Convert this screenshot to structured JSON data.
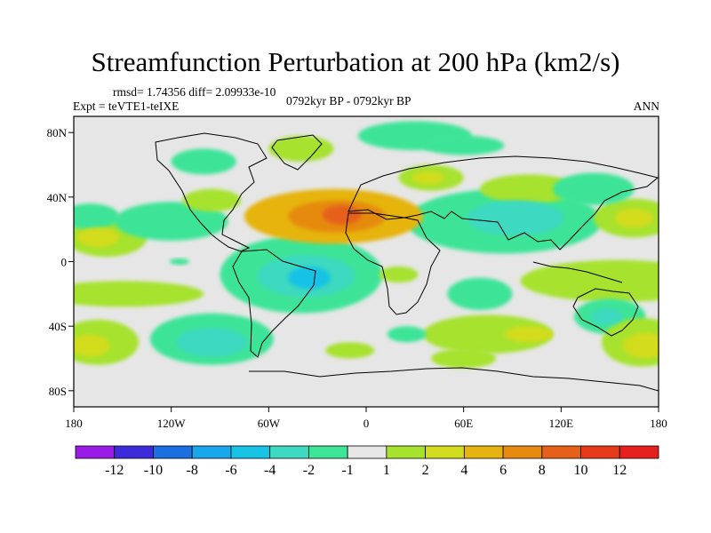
{
  "chart_data": {
    "type": "heatmap",
    "title": "Streamfunction Perturbation at 200 hPa (km2/s)",
    "stats_label": "rmsd= 1.74356 diff= 2.09933e-10",
    "experiment_label": "Expt = teVTE1-teIXE",
    "period_label": "0792kyr BP - 0792kyr BP",
    "season_label": "ANN",
    "xlim": [
      -180,
      180
    ],
    "ylim": [
      -90,
      90
    ],
    "x_ticks": [
      {
        "value": -180,
        "label": "180"
      },
      {
        "value": -120,
        "label": "120W"
      },
      {
        "value": -60,
        "label": "60W"
      },
      {
        "value": 0,
        "label": "0"
      },
      {
        "value": 60,
        "label": "60E"
      },
      {
        "value": 120,
        "label": "120E"
      },
      {
        "value": 180,
        "label": "180"
      }
    ],
    "y_ticks": [
      {
        "value": 80,
        "label": "80N"
      },
      {
        "value": 40,
        "label": "40N"
      },
      {
        "value": 0,
        "label": "0"
      },
      {
        "value": -40,
        "label": "40S"
      },
      {
        "value": -80,
        "label": "80S"
      }
    ],
    "colorbar": {
      "labels": [
        "-12",
        "-10",
        "-8",
        "-6",
        "-4",
        "-2",
        "-1",
        "1",
        "2",
        "4",
        "6",
        "8",
        "10",
        "12"
      ],
      "colors": [
        "#9a1be6",
        "#3c2bd8",
        "#1b6fe0",
        "#1aa6ea",
        "#19c3e6",
        "#3ed9c0",
        "#3ee497",
        "#e6e6e6",
        "#a6e22e",
        "#d2dc1f",
        "#e6b410",
        "#e68a10",
        "#e6601a",
        "#e63a1a",
        "#e61f1f"
      ]
    },
    "blobs": [
      {
        "lon": -20,
        "lat": 28,
        "rx": 55,
        "ry": 17,
        "level": 3
      },
      {
        "lon": -18,
        "lat": 28,
        "rx": 30,
        "ry": 10,
        "level": 4
      },
      {
        "lon": -15,
        "lat": 29,
        "rx": 12,
        "ry": 6,
        "level": 5
      },
      {
        "lon": 40,
        "lat": 52,
        "rx": 20,
        "ry": 8,
        "level": 1
      },
      {
        "lon": 38,
        "lat": 52,
        "rx": 10,
        "ry": 4,
        "level": 2
      },
      {
        "lon": -40,
        "lat": -8,
        "rx": 50,
        "ry": 24,
        "level": -1
      },
      {
        "lon": -37,
        "lat": -9,
        "rx": 30,
        "ry": 13,
        "level": -2
      },
      {
        "lon": -35,
        "lat": -10,
        "rx": 13,
        "ry": 7,
        "level": -3
      },
      {
        "lon": 85,
        "lat": 25,
        "rx": 60,
        "ry": 20,
        "level": -1
      },
      {
        "lon": 92,
        "lat": 27,
        "rx": 30,
        "ry": 11,
        "level": -2
      },
      {
        "lon": -95,
        "lat": -48,
        "rx": 38,
        "ry": 16,
        "level": -1
      },
      {
        "lon": -95,
        "lat": -50,
        "rx": 22,
        "ry": 9,
        "level": -2
      },
      {
        "lon": -160,
        "lat": 15,
        "rx": 25,
        "ry": 12,
        "level": 1
      },
      {
        "lon": -165,
        "lat": 15,
        "rx": 13,
        "ry": 6,
        "level": 2
      },
      {
        "lon": 165,
        "lat": 27,
        "rx": 25,
        "ry": 12,
        "level": 1
      },
      {
        "lon": 165,
        "lat": 27,
        "rx": 12,
        "ry": 6,
        "level": 2
      },
      {
        "lon": 155,
        "lat": -12,
        "rx": 60,
        "ry": 13,
        "level": 1
      },
      {
        "lon": 150,
        "lat": -34,
        "rx": 22,
        "ry": 11,
        "level": -1
      },
      {
        "lon": 148,
        "lat": -34,
        "rx": 10,
        "ry": 5,
        "level": -2
      },
      {
        "lon": 170,
        "lat": -50,
        "rx": 25,
        "ry": 15,
        "level": 1
      },
      {
        "lon": 172,
        "lat": -52,
        "rx": 14,
        "ry": 8,
        "level": 2
      },
      {
        "lon": -165,
        "lat": -50,
        "rx": 25,
        "ry": 14,
        "level": 1
      },
      {
        "lon": -170,
        "lat": -52,
        "rx": 12,
        "ry": 7,
        "level": 2
      },
      {
        "lon": -150,
        "lat": -20,
        "rx": 50,
        "ry": 8,
        "level": 1
      },
      {
        "lon": -120,
        "lat": 25,
        "rx": 35,
        "ry": 12,
        "level": -1
      },
      {
        "lon": -100,
        "lat": 62,
        "rx": 20,
        "ry": 8,
        "level": -1
      },
      {
        "lon": -40,
        "lat": 70,
        "rx": 20,
        "ry": 8,
        "level": 1
      },
      {
        "lon": -95,
        "lat": 38,
        "rx": 18,
        "ry": 7,
        "level": 1
      },
      {
        "lon": 30,
        "lat": 78,
        "rx": 35,
        "ry": 9,
        "level": -1
      },
      {
        "lon": 60,
        "lat": 72,
        "rx": 25,
        "ry": 6,
        "level": -1
      },
      {
        "lon": 100,
        "lat": 45,
        "rx": 30,
        "ry": 9,
        "level": 1
      },
      {
        "lon": 140,
        "lat": 45,
        "rx": 25,
        "ry": 10,
        "level": -1
      },
      {
        "lon": 70,
        "lat": -20,
        "rx": 20,
        "ry": 10,
        "level": -1
      },
      {
        "lon": 20,
        "lat": -8,
        "rx": 12,
        "ry": 5,
        "level": 1
      },
      {
        "lon": 75,
        "lat": -45,
        "rx": 40,
        "ry": 12,
        "level": 1
      },
      {
        "lon": 100,
        "lat": -45,
        "rx": 15,
        "ry": 5,
        "level": 2
      },
      {
        "lon": 25,
        "lat": -45,
        "rx": 12,
        "ry": 5,
        "level": -1
      },
      {
        "lon": -170,
        "lat": 28,
        "rx": 18,
        "ry": 8,
        "level": -1
      },
      {
        "lon": -115,
        "lat": 0,
        "rx": 6,
        "ry": 2,
        "level": -1
      },
      {
        "lon": 60,
        "lat": -60,
        "rx": 20,
        "ry": 6,
        "level": 1
      },
      {
        "lon": -10,
        "lat": -55,
        "rx": 15,
        "ry": 5,
        "level": 1
      }
    ]
  }
}
